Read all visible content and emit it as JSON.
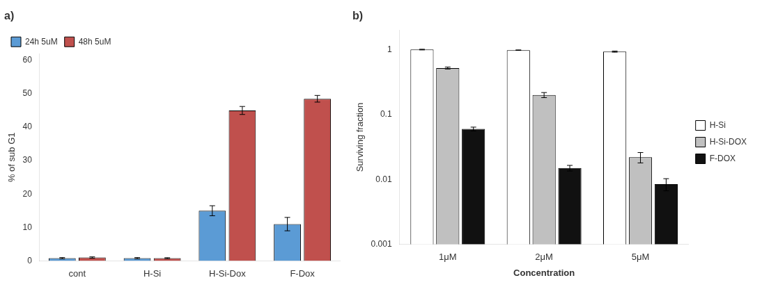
{
  "chart_data": [
    {
      "type": "bar",
      "title": "a)",
      "categories": [
        "cont",
        "H-Si",
        "H-Si-Dox",
        "F-Dox"
      ],
      "series": [
        {
          "name": "24h 5uM",
          "color": "#5b9bd5",
          "values": [
            0.8,
            0.8,
            15.0,
            11.0
          ],
          "errors": [
            0.2,
            0.2,
            1.5,
            2.0
          ]
        },
        {
          "name": "48h 5uM",
          "color": "#c0504d",
          "values": [
            1.0,
            0.8,
            45.0,
            48.5
          ],
          "errors": [
            0.2,
            0.15,
            1.2,
            1.0
          ]
        }
      ],
      "ylabel": "% of sub G1",
      "ylim": [
        0,
        62
      ],
      "yticks": [
        0,
        10,
        20,
        30,
        40,
        50,
        60
      ],
      "grid": false,
      "legend": "upper left"
    },
    {
      "type": "bar",
      "title": "b)",
      "categories": [
        "1μM",
        "2μM",
        "5μM"
      ],
      "series": [
        {
          "name": "H-Si",
          "color": "#ffffff",
          "values": [
            1.0,
            0.98,
            0.93
          ],
          "errors": [
            0.012,
            0.008,
            0.018
          ]
        },
        {
          "name": "H-Si-DOX",
          "color": "#c0c0c0",
          "values": [
            0.52,
            0.2,
            0.022
          ],
          "errors": [
            0.018,
            0.018,
            0.004
          ]
        },
        {
          "name": "F-DOX",
          "color": "#111111",
          "values": [
            0.06,
            0.015,
            0.0085
          ],
          "errors": [
            0.004,
            0.0015,
            0.0018
          ]
        }
      ],
      "xlabel": "Concentration",
      "ylabel": "Surviving fraction",
      "log": "y",
      "ylim": [
        0.001,
        2.0
      ],
      "yticks": [
        0.001,
        0.01,
        0.1,
        1
      ],
      "grid": false,
      "legend": "right"
    }
  ]
}
